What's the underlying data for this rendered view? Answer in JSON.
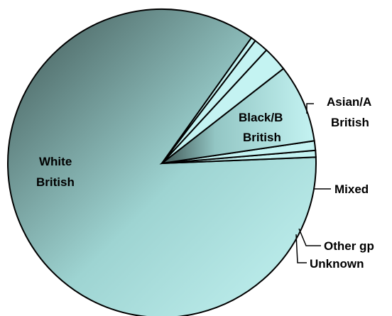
{
  "chart_data": {
    "type": "pie",
    "title": "",
    "slices": [
      {
        "label": "White British",
        "value": 85.5
      },
      {
        "label": "Other gp",
        "value": 0.7
      },
      {
        "label": "Unknown",
        "value": 1.0
      },
      {
        "label": "Mixed",
        "value": 8.2
      },
      {
        "label": "Black/B British",
        "value": 2.6
      },
      {
        "label": "Asian/A British",
        "value": 1.5
      },
      {
        "label": "Other gp",
        "value": 0.5
      }
    ],
    "start_angle_deg": -54.5,
    "direction": "counterclockwise",
    "legend": "none",
    "fill": {
      "light": "#c4f3f2",
      "dark": "#3f5654"
    }
  },
  "labels": {
    "white_line1": "White",
    "white_line2": "British",
    "black_line1": "Black/B",
    "black_line2": "British",
    "asian_line1": "Asian/A",
    "asian_line2": "British",
    "mixed": "Mixed",
    "other": "Other gp",
    "unknown": "Unknown"
  }
}
